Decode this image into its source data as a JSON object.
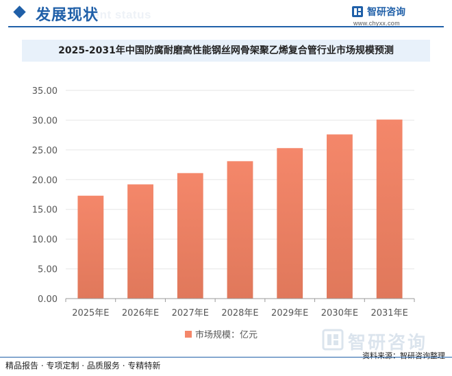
{
  "header": {
    "section_title": "发展现状",
    "section_subtitle": "ment status",
    "brand_name": "智研咨询",
    "brand_url": "www.chyxx.com"
  },
  "chart_data": {
    "type": "bar",
    "title": "2025-2031年中国防腐耐磨高性能钢丝网骨架聚乙烯复合管行业市场规模预测",
    "categories": [
      "2025年E",
      "2026年E",
      "2027年E",
      "2028年E",
      "2029年E",
      "2030年E",
      "2031年E"
    ],
    "series": [
      {
        "name": "市场规模：亿元",
        "values": [
          17.3,
          19.2,
          21.1,
          23.1,
          25.3,
          27.6,
          30.1
        ]
      }
    ],
    "yticks": [
      "0.00",
      "5.00",
      "10.00",
      "15.00",
      "20.00",
      "25.00",
      "30.00",
      "35.00"
    ],
    "ylim": [
      0,
      35
    ],
    "grid": true,
    "legend_position": "bottom-center",
    "colors": {
      "bar_top": "#f4876a",
      "bar_bottom": "#e0785b",
      "axis": "#999999",
      "grid": "#e6e6e6"
    }
  },
  "footer": {
    "left_text": "精品报告 · 专项定制 · 品质服务 · 专精特新",
    "source_text": "资料来源：智研咨询整理"
  },
  "watermark": {
    "text": "智研咨询"
  }
}
